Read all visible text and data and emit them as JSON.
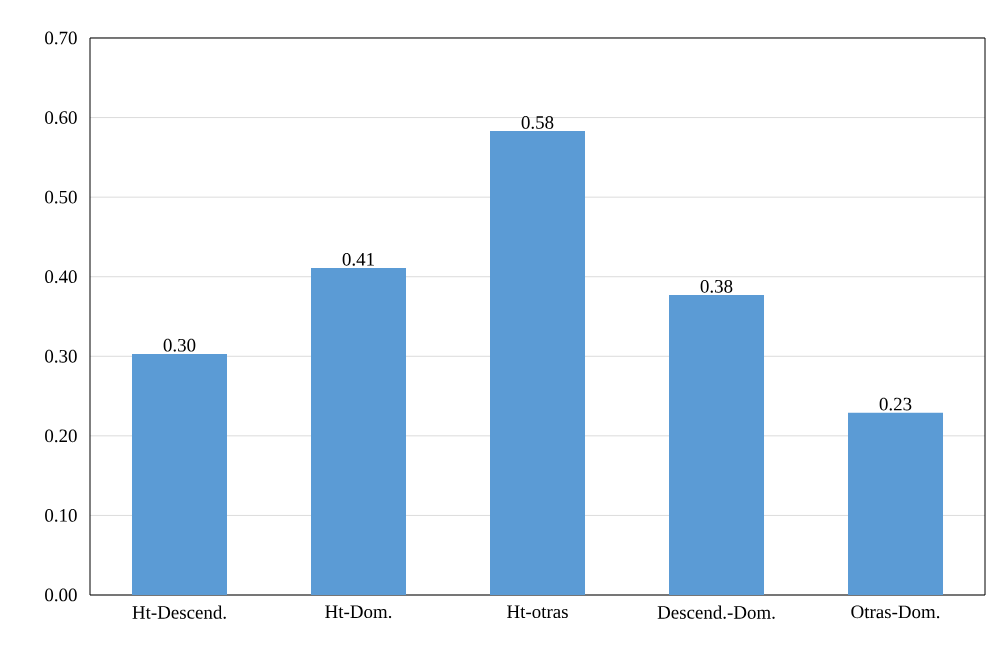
{
  "chart_data": {
    "type": "bar",
    "categories": [
      "Ht-Descend.",
      "Ht-Dom.",
      "Ht-otras",
      "Descend.-Dom.",
      "Otras-Dom."
    ],
    "values": [
      0.303,
      0.411,
      0.583,
      0.377,
      0.229
    ],
    "value_labels": [
      "0.30",
      "0.41",
      "0.58",
      "0.38",
      "0.23"
    ],
    "color": "#5b9bd5",
    "ylim": [
      0,
      0.7
    ],
    "yticks": [
      {
        "value": 0,
        "label": "0.00"
      },
      {
        "value": 0.1,
        "label": "0.10"
      },
      {
        "value": 0.2,
        "label": "0.20"
      },
      {
        "value": 0.3,
        "label": "0.30"
      },
      {
        "value": 0.4,
        "label": "0.40"
      },
      {
        "value": 0.5,
        "label": "0.50"
      },
      {
        "value": 0.6,
        "label": "0.60"
      },
      {
        "value": 0.7,
        "label": "0.70"
      }
    ],
    "grid": "y"
  }
}
